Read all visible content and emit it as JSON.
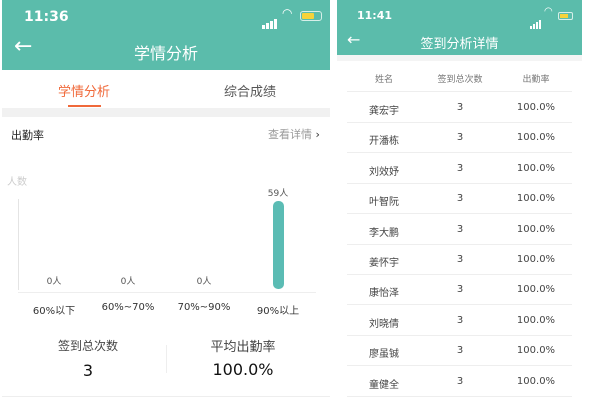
{
  "left": {
    "status_time": "11:36",
    "title": "学情分析",
    "tabs": [
      {
        "label": "学情分析",
        "active": true
      },
      {
        "label": "综合成绩",
        "active": false
      }
    ],
    "section_title": "出勤率",
    "detail_link": "查看详情",
    "stats": [
      {
        "label": "签到总次数",
        "value": "3"
      },
      {
        "label": "平均出勤率",
        "value": "100.0%"
      }
    ]
  },
  "chart_data": {
    "type": "bar",
    "ylabel": "人数",
    "categories": [
      "60%以下",
      "60%~70%",
      "70%~90%",
      "90%以上"
    ],
    "values": [
      0,
      0,
      0,
      59
    ],
    "data_labels": [
      "0人",
      "0人",
      "0人",
      "59人"
    ],
    "bar_color": "#5bbcb4",
    "grid": false
  },
  "right": {
    "status_time": "11:41",
    "title": "签到分析详情",
    "columns": [
      "姓名",
      "签到总次数",
      "出勤率"
    ],
    "rows": [
      [
        "龚宏宇",
        "3",
        "100.0%"
      ],
      [
        "开潘栋",
        "3",
        "100.0%"
      ],
      [
        "刘效妤",
        "3",
        "100.0%"
      ],
      [
        "叶智阮",
        "3",
        "100.0%"
      ],
      [
        "李大鹏",
        "3",
        "100.0%"
      ],
      [
        "姜怀宇",
        "3",
        "100.0%"
      ],
      [
        "康怡泽",
        "3",
        "100.0%"
      ],
      [
        "刘晓倩",
        "3",
        "100.0%"
      ],
      [
        "廖虽铖",
        "3",
        "100.0%"
      ],
      [
        "童健全",
        "3",
        "100.0%"
      ]
    ]
  },
  "colors": {
    "header": "#5bbcab",
    "accent": "#f0693a"
  }
}
